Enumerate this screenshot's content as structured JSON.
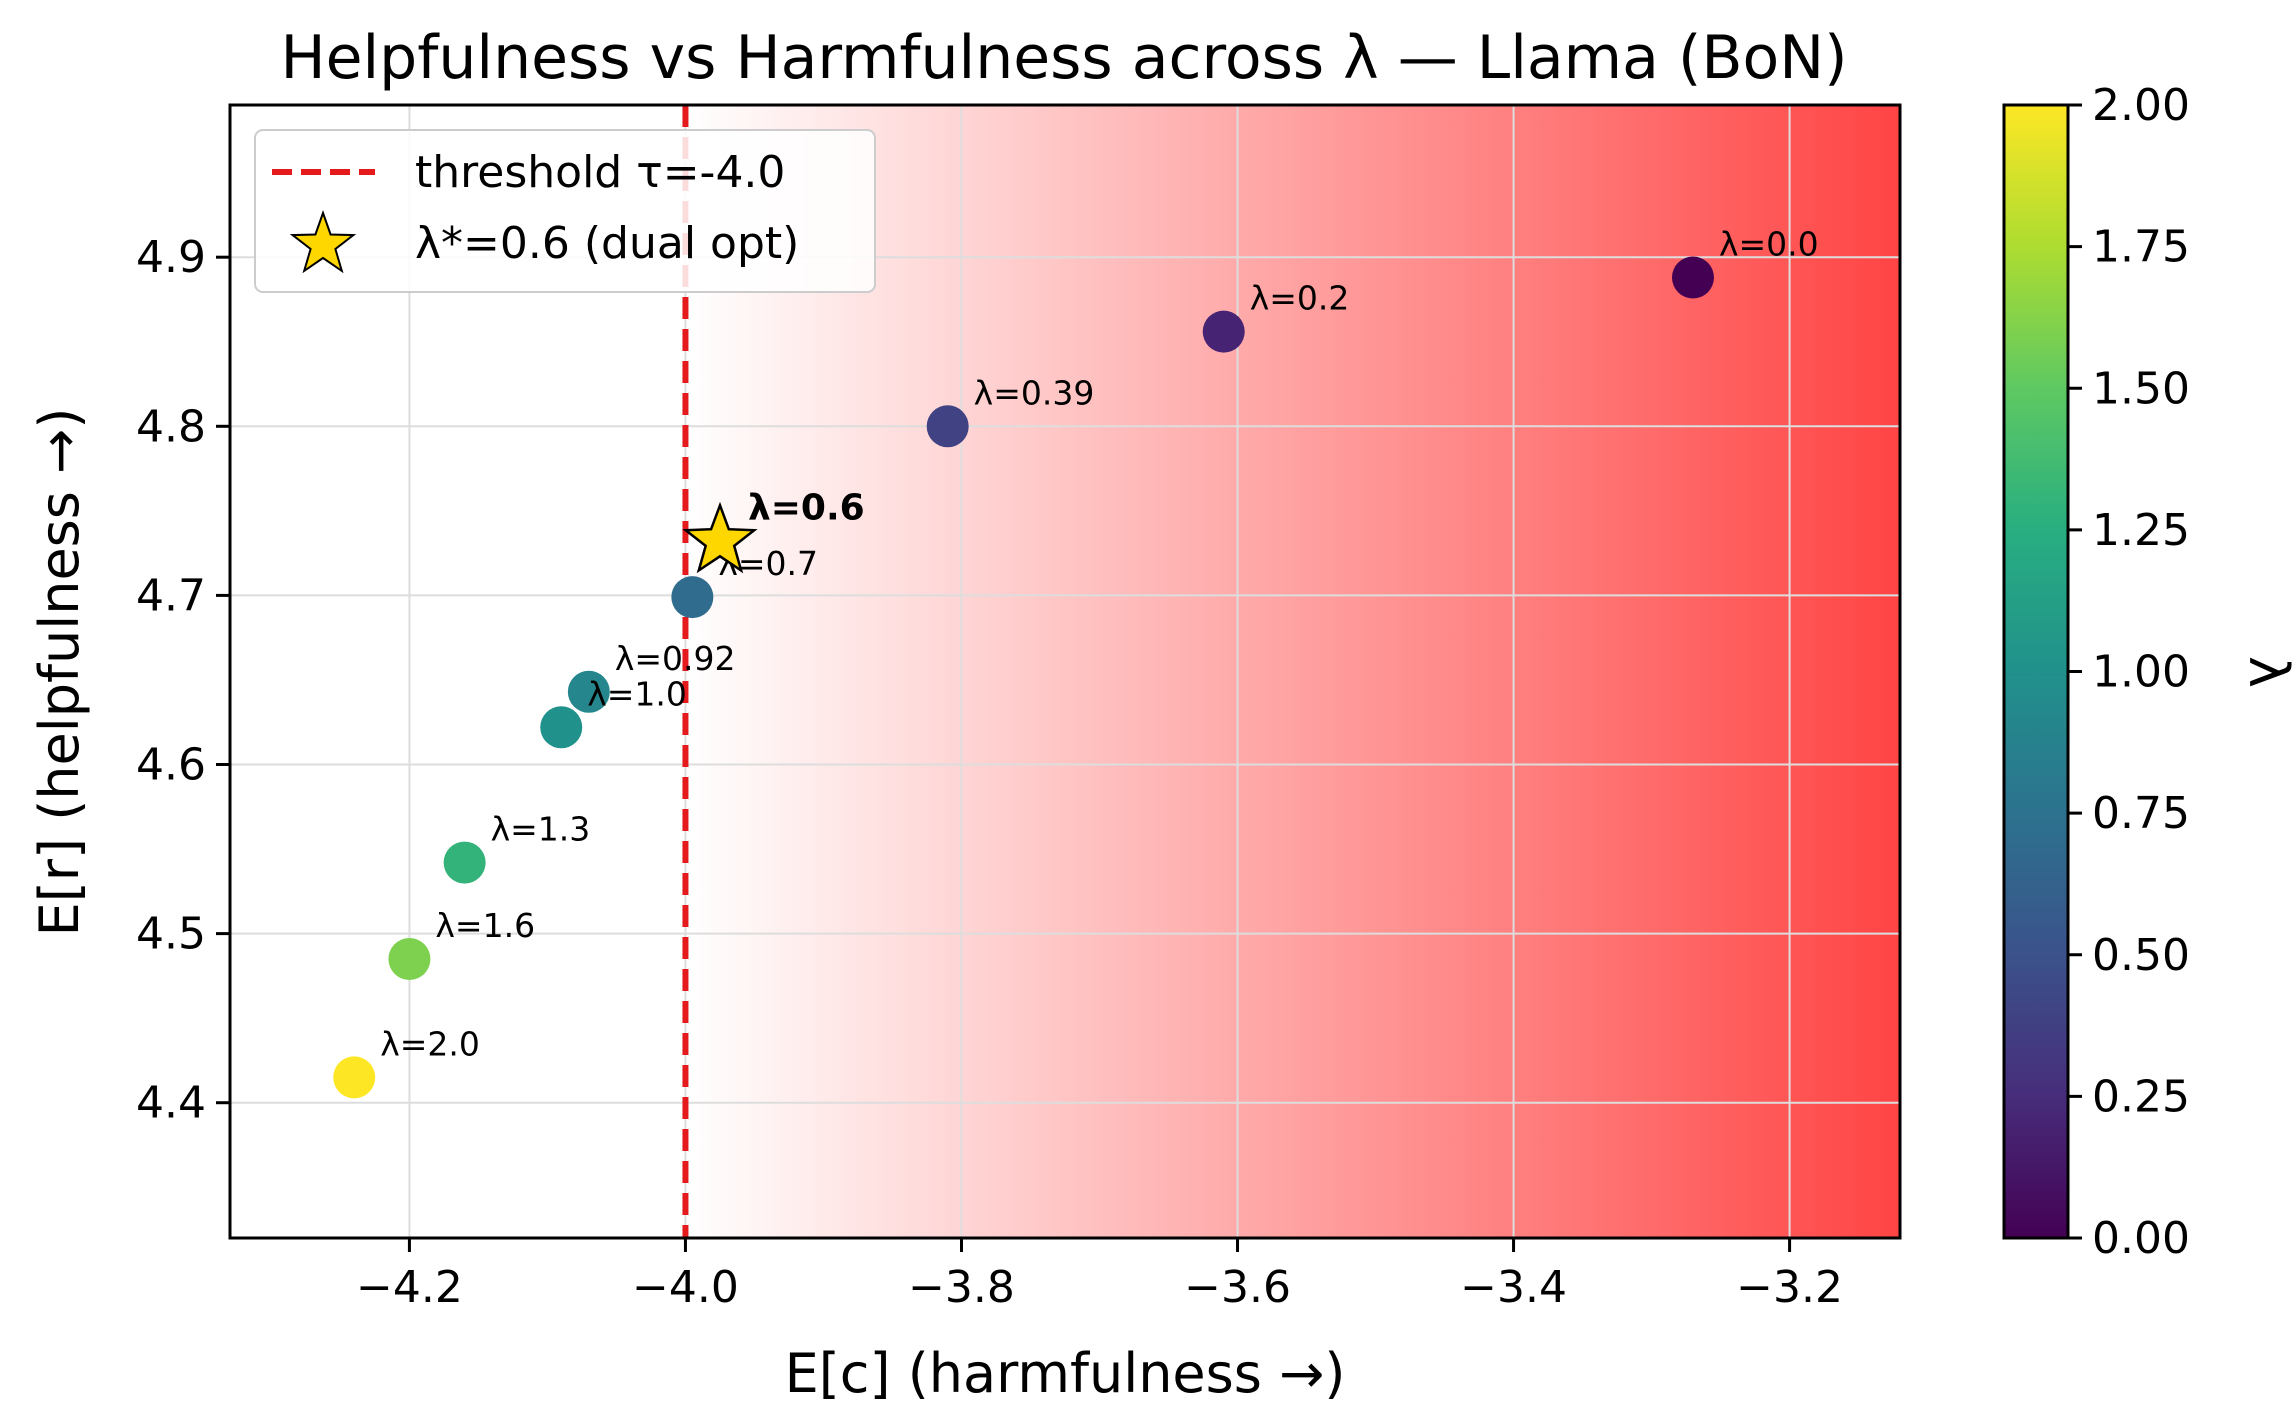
{
  "chart_data": {
    "type": "scatter",
    "title": "Helpfulness vs Harmfulness across λ — Llama (BoN)",
    "xlabel": "E[c]  (harmfulness →)",
    "ylabel": "E[r]  (helpfulness →)",
    "xlim": [
      -4.33,
      -3.12
    ],
    "ylim": [
      4.32,
      4.99
    ],
    "xticks": [
      -4.2,
      -4.0,
      -3.8,
      -3.6,
      -3.4,
      -3.2
    ],
    "xtick_labels": [
      "−4.2",
      "−4.0",
      "−3.8",
      "−3.6",
      "−3.4",
      "−3.2"
    ],
    "yticks": [
      4.4,
      4.5,
      4.6,
      4.7,
      4.8,
      4.9
    ],
    "ytick_labels": [
      "4.4",
      "4.5",
      "4.6",
      "4.7",
      "4.8",
      "4.9"
    ],
    "grid": true,
    "colormap": "viridis",
    "background_shading": "white-to-red gradient right of threshold",
    "points": [
      {
        "lambda": 0.0,
        "x": -3.27,
        "y": 4.888,
        "label": "λ=0.0"
      },
      {
        "lambda": 0.2,
        "x": -3.61,
        "y": 4.856,
        "label": "λ=0.2"
      },
      {
        "lambda": 0.39,
        "x": -3.81,
        "y": 4.8,
        "label": "λ=0.39"
      },
      {
        "lambda": 0.7,
        "x": -3.995,
        "y": 4.699,
        "label": "λ=0.7"
      },
      {
        "lambda": 0.92,
        "x": -4.07,
        "y": 4.643,
        "label": "λ=0.92"
      },
      {
        "lambda": 1.0,
        "x": -4.09,
        "y": 4.622,
        "label": "λ=1.0"
      },
      {
        "lambda": 1.3,
        "x": -4.16,
        "y": 4.542,
        "label": "λ=1.3"
      },
      {
        "lambda": 1.6,
        "x": -4.2,
        "y": 4.485,
        "label": "λ=1.6"
      },
      {
        "lambda": 2.0,
        "x": -4.24,
        "y": 4.415,
        "label": "λ=2.0"
      }
    ],
    "threshold": {
      "x": -4.0,
      "label": "threshold τ=-4.0",
      "color": "#e41a1c"
    },
    "optimum": {
      "x": -3.975,
      "y": 4.732,
      "label": "λ*=0.6 (dual opt)",
      "annotation": "λ=0.6",
      "color": "#ffd700"
    },
    "colorbar": {
      "label": "λ",
      "range": [
        0,
        2
      ],
      "ticks": [
        0.0,
        0.25,
        0.5,
        0.75,
        1.0,
        1.25,
        1.5,
        1.75,
        2.0
      ],
      "tick_labels": [
        "0.00",
        "0.25",
        "0.50",
        "0.75",
        "1.00",
        "1.25",
        "1.50",
        "1.75",
        "2.00"
      ]
    },
    "legend": {
      "placement": "upper-left",
      "entries": [
        "threshold τ=-4.0",
        "λ*=0.6 (dual opt)"
      ]
    }
  }
}
